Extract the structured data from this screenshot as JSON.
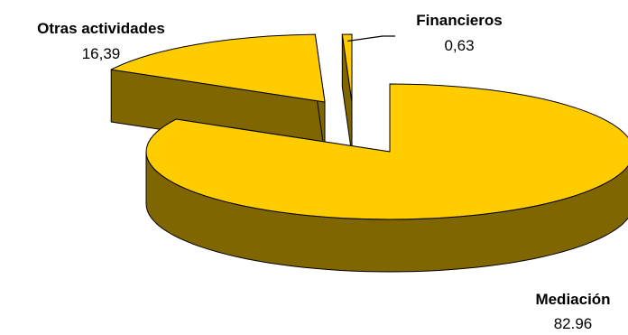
{
  "chart_data": {
    "type": "pie",
    "style": "3d-exploded",
    "legend": "none",
    "top_color": "#FFCC00",
    "side_color": "#806600",
    "outline_color": "#000000",
    "slices": [
      {
        "label": "Mediación",
        "value": 82.96,
        "value_text": "82.96"
      },
      {
        "label": "Otras actividades",
        "value": 16.39,
        "value_text": "16,39"
      },
      {
        "label": "Financieros",
        "value": 0.63,
        "value_text": "0,63"
      }
    ]
  }
}
